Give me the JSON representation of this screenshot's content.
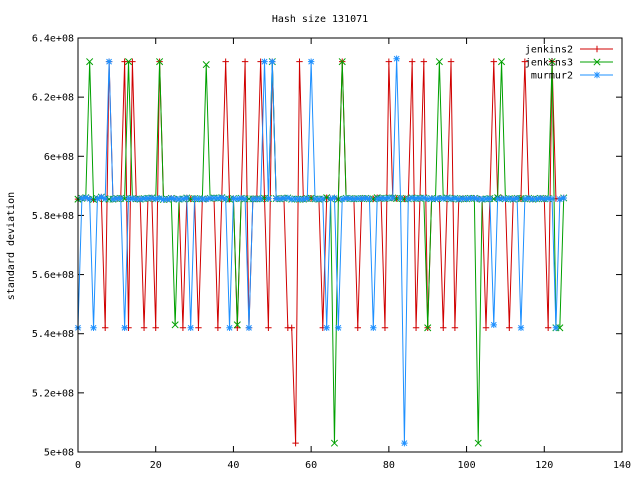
{
  "chart_data": {
    "type": "line",
    "title": "Hash size 131071",
    "xlabel": "",
    "ylabel": "standard deviation",
    "xlim": [
      0,
      140
    ],
    "ylim": [
      500000000,
      640000000
    ],
    "x_ticks": [
      0,
      20,
      40,
      60,
      80,
      100,
      120,
      140
    ],
    "y_ticks": [
      500000000,
      520000000,
      540000000,
      560000000,
      580000000,
      600000000,
      620000000,
      640000000
    ],
    "x_tick_labels": [
      "0",
      "20",
      "40",
      "60",
      "80",
      "100",
      "120",
      "140"
    ],
    "y_tick_labels": [
      "5e+08",
      "5.2e+08",
      "5.4e+08",
      "5.6e+08",
      "5.8e+08",
      "6e+08",
      "6.2e+08",
      "6.4e+08"
    ],
    "grid": false,
    "legend_position": "top-right",
    "x": [
      0,
      1,
      2,
      3,
      4,
      5,
      6,
      7,
      8,
      9,
      10,
      11,
      12,
      13,
      14,
      15,
      16,
      17,
      18,
      19,
      20,
      21,
      22,
      23,
      24,
      25,
      26,
      27,
      28,
      29,
      30,
      31,
      32,
      33,
      34,
      35,
      36,
      37,
      38,
      39,
      40,
      41,
      42,
      43,
      44,
      45,
      46,
      47,
      48,
      49,
      50,
      51,
      52,
      53,
      54,
      55,
      56,
      57,
      58,
      59,
      60,
      61,
      62,
      63,
      64,
      65,
      66,
      67,
      68,
      69,
      70,
      71,
      72,
      73,
      74,
      75,
      76,
      77,
      78,
      79,
      80,
      81,
      82,
      83,
      84,
      85,
      86,
      87,
      88,
      89,
      90,
      91,
      92,
      93,
      94,
      95,
      96,
      97,
      98,
      99,
      100,
      101,
      102,
      103,
      104,
      105,
      106,
      107,
      108,
      109,
      110,
      111,
      112,
      113,
      114,
      115,
      116,
      117,
      118,
      119,
      120,
      121,
      122,
      123,
      124,
      125
    ],
    "series": [
      {
        "name": "jenkins2",
        "color": "#d00000",
        "marker": "plus",
        "values": [
          585500000,
          585800000,
          586000000,
          585600000,
          585400000,
          585700000,
          586200000,
          542000000,
          632000000,
          585500000,
          585700000,
          585800000,
          632000000,
          542000000,
          632000000,
          585600000,
          585500000,
          542000000,
          585700000,
          585900000,
          542000000,
          632000000,
          585400000,
          585500000,
          585800000,
          585600000,
          585500000,
          542000000,
          585900000,
          585600000,
          585700000,
          542000000,
          585600000,
          585500000,
          585800000,
          585900000,
          542000000,
          586000000,
          632000000,
          585500000,
          585700000,
          542000000,
          585800000,
          632000000,
          542000000,
          585600000,
          585600000,
          632000000,
          585800000,
          542000000,
          632000000,
          585700000,
          585600000,
          585800000,
          542000000,
          542000000,
          503000000,
          632000000,
          585500000,
          585700000,
          585800000,
          585600000,
          585500000,
          542000000,
          586000000,
          585600000,
          585900000,
          585500000,
          632000000,
          585800000,
          585700000,
          585600000,
          542000000,
          585700000,
          585800000,
          585600000,
          585600000,
          586000000,
          585800000,
          542000000,
          632000000,
          585900000,
          585700000,
          585800000,
          585600000,
          585600000,
          632000000,
          542000000,
          585800000,
          632000000,
          542000000,
          585700000,
          585600000,
          585800000,
          542000000,
          585900000,
          632000000,
          542000000,
          585500000,
          585700000,
          585600000,
          585800000,
          585800000,
          585600000,
          585500000,
          542000000,
          585700000,
          632000000,
          586000000,
          585900000,
          585600000,
          542000000,
          585500000,
          585800000,
          585700000,
          632000000,
          585800000,
          585500000,
          585600000,
          585800000,
          585600000,
          542000000,
          632000000,
          585700000,
          585500000,
          585900000
        ]
      },
      {
        "name": "jenkins3",
        "color": "#00a000",
        "marker": "cross",
        "values": [
          585500000,
          585800000,
          586000000,
          632000000,
          585400000,
          585700000,
          586200000,
          585600000,
          585500000,
          585500000,
          585700000,
          585800000,
          585600000,
          632000000,
          585700000,
          585600000,
          585500000,
          585700000,
          585800000,
          585900000,
          585600000,
          632000000,
          585400000,
          585500000,
          585800000,
          543000000,
          585500000,
          585600000,
          585900000,
          585600000,
          585700000,
          585600000,
          585600000,
          631000000,
          585800000,
          585900000,
          585800000,
          586000000,
          585600000,
          585500000,
          585700000,
          543000000,
          585800000,
          585600000,
          585600000,
          585600000,
          585600000,
          585600000,
          585800000,
          585700000,
          632000000,
          585700000,
          585600000,
          585800000,
          585900000,
          585500000,
          585600000,
          585500000,
          585500000,
          585700000,
          585800000,
          585600000,
          585500000,
          585600000,
          586000000,
          585600000,
          503000000,
          585500000,
          632000000,
          585800000,
          585700000,
          585600000,
          585700000,
          585700000,
          585800000,
          585600000,
          585600000,
          586000000,
          585800000,
          585700000,
          585900000,
          585900000,
          585700000,
          585800000,
          585600000,
          585600000,
          585900000,
          585700000,
          585800000,
          585900000,
          542000000,
          585700000,
          585600000,
          632000000,
          585700000,
          585900000,
          585600000,
          585800000,
          585500000,
          585700000,
          585600000,
          585800000,
          585800000,
          503000000,
          585500000,
          585600000,
          585700000,
          585600000,
          586000000,
          632000000,
          585600000,
          585700000,
          585500000,
          585800000,
          585700000,
          585600000,
          585800000,
          585500000,
          585600000,
          585800000,
          585600000,
          585700000,
          632000000,
          542000000,
          542000000,
          585900000
        ]
      },
      {
        "name": "murmur2",
        "color": "#1e90ff",
        "marker": "star",
        "values": [
          542000000,
          585800000,
          586000000,
          585600000,
          542000000,
          585700000,
          586200000,
          585600000,
          632000000,
          585500000,
          585700000,
          585800000,
          542000000,
          585700000,
          585700000,
          585600000,
          585500000,
          585700000,
          585800000,
          585900000,
          585600000,
          585800000,
          585400000,
          585500000,
          585800000,
          585600000,
          585500000,
          585600000,
          585900000,
          542000000,
          585700000,
          585600000,
          585600000,
          585500000,
          585800000,
          585900000,
          585800000,
          586000000,
          585600000,
          542000000,
          585700000,
          585600000,
          585800000,
          585600000,
          542000000,
          585600000,
          585600000,
          585600000,
          632000000,
          585700000,
          632000000,
          585700000,
          585600000,
          585800000,
          585900000,
          585500000,
          585600000,
          585500000,
          585500000,
          585700000,
          632000000,
          585600000,
          585500000,
          585600000,
          542000000,
          585600000,
          585900000,
          542000000,
          585500000,
          585800000,
          585700000,
          585600000,
          585700000,
          585700000,
          585800000,
          585600000,
          542000000,
          585600000,
          585800000,
          585700000,
          585900000,
          585900000,
          633000000,
          585800000,
          503000000,
          585600000,
          585900000,
          585700000,
          585800000,
          585900000,
          585600000,
          585700000,
          585600000,
          585800000,
          585700000,
          585900000,
          585600000,
          585800000,
          585500000,
          585700000,
          585600000,
          585800000,
          585800000,
          585600000,
          585500000,
          585600000,
          585700000,
          543000000,
          585600000,
          585700000,
          585600000,
          585700000,
          585500000,
          585800000,
          542000000,
          585600000,
          585800000,
          585500000,
          585600000,
          585800000,
          585600000,
          585700000,
          585600000,
          542000000,
          585500000,
          585900000
        ]
      }
    ]
  }
}
